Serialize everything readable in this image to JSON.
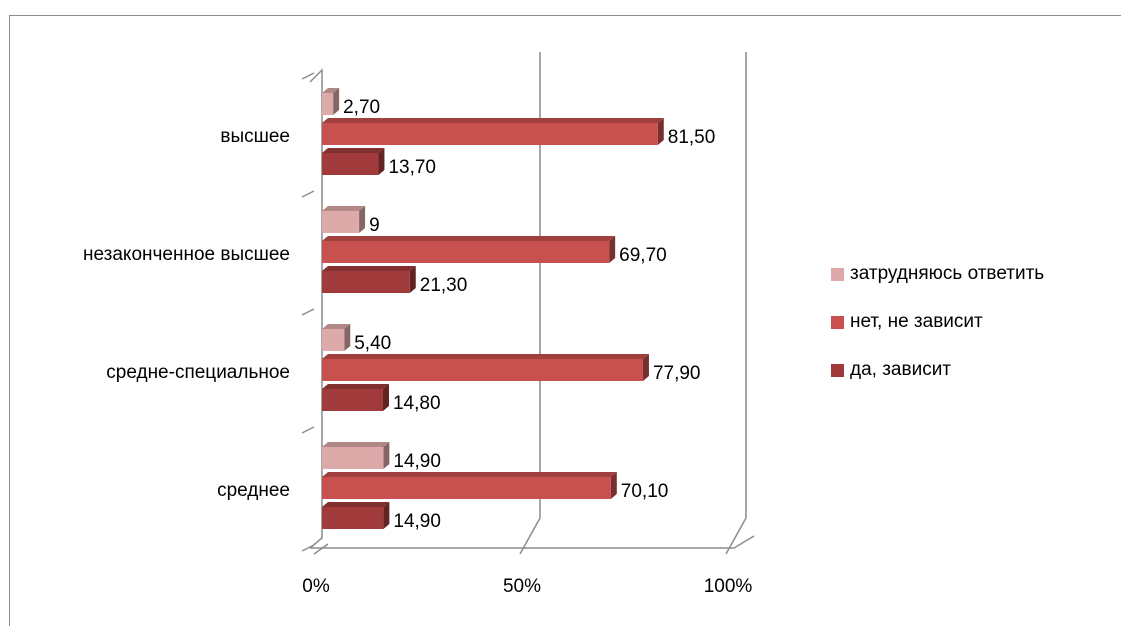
{
  "chart_data": {
    "type": "bar",
    "orientation": "horizontal",
    "categories": [
      "среднее",
      "средне-специальное",
      "незаконченное высшее",
      "высшее"
    ],
    "series": [
      {
        "name": "да, зависит",
        "color": "#a13b3b",
        "values": [
          14.9,
          14.8,
          21.3,
          13.7
        ],
        "labels": [
          "14,90",
          "14,80",
          "21,30",
          "13,70"
        ]
      },
      {
        "name": "нет, не зависит",
        "color": "#c8504e",
        "values": [
          70.1,
          77.9,
          69.7,
          81.5
        ],
        "labels": [
          "70,10",
          "77,90",
          "69,70",
          "81,50"
        ]
      },
      {
        "name": "затрудняюсь ответить",
        "color": "#deaaa9",
        "values": [
          14.9,
          5.4,
          9,
          2.7
        ],
        "labels": [
          "14,90",
          "5,40",
          "9",
          "2,70"
        ]
      }
    ],
    "xlim": [
      0,
      100
    ],
    "x_ticks": [
      "0%",
      "50%",
      "100%"
    ],
    "grid": true,
    "legend_position": "right",
    "three_d": true
  }
}
